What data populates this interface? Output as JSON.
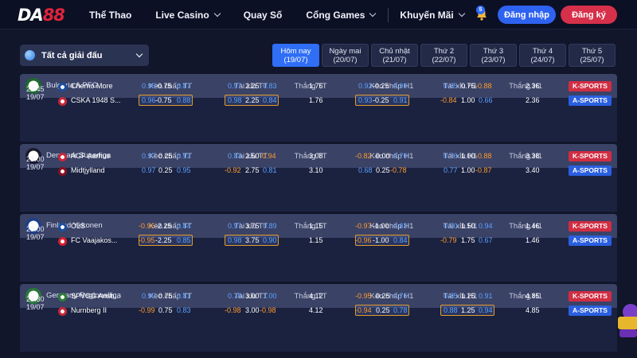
{
  "header": {
    "logo": {
      "main": "DA",
      "accent": "88"
    },
    "nav": [
      {
        "label": "Thể Thao",
        "dropdown": false
      },
      {
        "label": "Live Casino",
        "dropdown": true
      },
      {
        "label": "Quay Số",
        "dropdown": false
      },
      {
        "label": "Cổng Games",
        "dropdown": true
      },
      {
        "label": "Khuyến Mãi",
        "dropdown": true
      }
    ],
    "notification_count": "5",
    "login_label": "Đăng nhập",
    "register_label": "Đăng ký"
  },
  "filter": {
    "league_select": "Tất cả giải đấu",
    "date_tabs": [
      {
        "day": "Hôm nay",
        "date": "(19/07)",
        "active": true
      },
      {
        "day": "Ngày mai",
        "date": "(20/07)"
      },
      {
        "day": "Chủ nhật",
        "date": "(21/07)"
      },
      {
        "day": "Thứ 2",
        "date": "(22/07)"
      },
      {
        "day": "Thứ 3",
        "date": "(23/07)"
      },
      {
        "day": "Thứ 4",
        "date": "(24/07)"
      },
      {
        "day": "Thứ 5",
        "date": "(25/07)"
      }
    ]
  },
  "columns": [
    "Kèo chấp TT",
    "Tài xỉu TT",
    "Thắng TT",
    "Kèo chấp H1",
    "Tài xỉu H1",
    "Thắng H1"
  ],
  "sport_buttons": {
    "k": "K-SPORTS",
    "a": "A-SPORTS"
  },
  "leagues": [
    {
      "name": "Bulgaria A PFG",
      "time": "22:45",
      "date": "19/07",
      "home": {
        "name": "Cherno More",
        "hc": [
          "0.95",
          "-0.75",
          "0.87"
        ],
        "ou": [
          "0.97",
          "2.25",
          "0.83"
        ],
        "win": "1.76",
        "hc1": [
          "0.92",
          "-0.25",
          "0.90"
        ],
        "ou1": [
          "0.65",
          "0.75",
          "-0.88"
        ],
        "win1": "2.36"
      },
      "away": {
        "name": "CSKA 1948 S...",
        "hc": [
          "0.96",
          "-0.75",
          "0.88"
        ],
        "ou": [
          "0.98",
          "2.25",
          "0.84"
        ],
        "win": "1.76",
        "hc1": [
          "0.93",
          "-0.25",
          "0.91"
        ],
        "ou1": [
          "-0.84",
          "1.00",
          "0.66"
        ],
        "win1": "2.36"
      }
    },
    {
      "name": "Denmark Superliga",
      "time": "23:00",
      "date": "19/07",
      "home": {
        "name": "AGF Aarhus",
        "hc": [
          "0.97",
          "0.25",
          "0.93"
        ],
        "ou": [
          "0.83",
          "2.50",
          "-0.94"
        ],
        "win": "3.08",
        "hc1": [
          "-0.82",
          "0.00",
          "0.70"
        ],
        "ou1": [
          "0.76",
          "1.00",
          "-0.88"
        ],
        "win1": "3.38"
      },
      "away": {
        "name": "Midtjylland",
        "hc": [
          "0.97",
          "0.25",
          "0.95"
        ],
        "ou": [
          "-0.92",
          "2.75",
          "0.81"
        ],
        "win": "3.10",
        "hc1": [
          "0.68",
          "0.25",
          "-0.78"
        ],
        "ou1": [
          "0.77",
          "1.00",
          "-0.87"
        ],
        "win1": "3.40"
      }
    },
    {
      "name": "Finland Ykkonen",
      "time": "23:00",
      "date": "19/07",
      "home": {
        "name": "OLS",
        "hc": [
          "-0.96",
          "-2.25",
          "0.84"
        ],
        "ou": [
          "0.97",
          "3.75",
          "0.89"
        ],
        "win": "1.15",
        "hc1": [
          "-0.97",
          "-1.00",
          "0.83"
        ],
        "ou1": [
          "0.90",
          "1.50",
          "0.94"
        ],
        "win1": "1.46"
      },
      "away": {
        "name": "FC Vaajakos...",
        "hc": [
          "-0.95",
          "-2.25",
          "0.85"
        ],
        "ou": [
          "0.98",
          "3.75",
          "0.90"
        ],
        "win": "1.15",
        "hc1": [
          "-0.96",
          "-1.00",
          "0.84"
        ],
        "ou1": [
          "-0.79",
          "1.75",
          "0.67"
        ],
        "win1": "1.46"
      }
    },
    {
      "name": "Germany Regionalliga",
      "time": "23:30",
      "date": "19/07",
      "home": {
        "name": "SPVGG Ansb...",
        "hc": [
          "0.99",
          "0.75",
          "0.81"
        ],
        "ou": [
          "0.78",
          "3.00",
          "1.00"
        ],
        "win": "4.12",
        "hc1": [
          "-0.95",
          "0.25",
          "0.76"
        ],
        "ou1": [
          "0.85",
          "1.25",
          "0.91"
        ],
        "win1": "4.85"
      },
      "away": {
        "name": "Nurnberg II",
        "hc": [
          "-0.99",
          "0.75",
          "0.83"
        ],
        "ou": [
          "-0.98",
          "3.00",
          "-0.98"
        ],
        "win": "4.12",
        "hc1": [
          "-0.94",
          "0.25",
          "0.78"
        ],
        "ou1": [
          "0.88",
          "1.25",
          "0.94"
        ],
        "win1": "4.85"
      }
    }
  ],
  "colors": {
    "accent": "#2f6ef5",
    "danger": "#d12d43",
    "odds_positive": "#5ea2ff",
    "odds_negative": "#ff9b2f",
    "background": "#11162b"
  }
}
